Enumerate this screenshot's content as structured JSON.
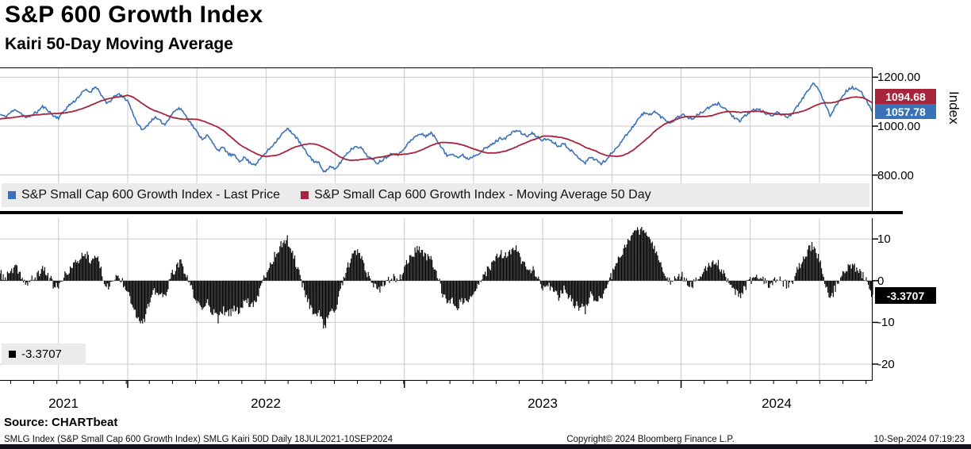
{
  "header": {
    "title": "S&P 600 Growth Index",
    "subtitle": "Kairi 50-Day Moving Average"
  },
  "top_axis": {
    "label": "Index",
    "tick_labels": [
      "1200.00",
      "1000.00",
      "800.00"
    ],
    "ma_callout": "1094.68",
    "price_callout": "1057.78"
  },
  "bottom_axis": {
    "tick_labels": [
      "10",
      "0",
      "-10",
      "-20"
    ],
    "value_callout": "-3.3707"
  },
  "kairi_legend": {
    "value": "-3.3707"
  },
  "x_axis": {
    "years": [
      "2021",
      "2022",
      "2023",
      "2024"
    ]
  },
  "footer": {
    "source": "Source:  CHARTbeat",
    "left": "SMLG Index (S&P Small Cap 600 Growth Index) SMLG Kairi 50D  Daily 18JUL2021-10SEP2024",
    "center": "Copyright© 2024 Bloomberg Finance L.P.",
    "right": "10-Sep-2024 07:19:23"
  },
  "colors": {
    "price_line": "#3A72B9",
    "ma_line": "#A8243A",
    "bars": "#000000",
    "grid": "#c9c9c9",
    "legend_band": "#ebebeb",
    "footer_bar": "#12121e"
  },
  "chart_data": {
    "type": "line+bar",
    "x": {
      "start": "18JUL2021",
      "end": "10SEP2024",
      "sampling": "weekly",
      "count": 165,
      "total_weeks": 164,
      "year_gridline_weeks": [
        24,
        76,
        128
      ],
      "quarter_gridline_weeks": [
        11,
        24,
        37,
        50,
        63,
        76,
        89,
        102,
        115,
        128,
        141,
        154
      ],
      "year_label_weeks": [
        12,
        50,
        102,
        146
      ]
    },
    "panels": [
      {
        "type": "line",
        "ylabel": "Index",
        "ylim": [
          760,
          1240
        ],
        "yticks": [
          1200,
          1000,
          800
        ],
        "series": [
          {
            "name": "S&P Small Cap 600 Growth Index - Last Price",
            "color": "#3A72B9",
            "last": 1057.78,
            "values": [
              1048,
              1038,
              1056,
              1068,
              1052,
              1032,
              1046,
              1058,
              1080,
              1066,
              1042,
              1034,
              1062,
              1086,
              1102,
              1126,
              1148,
              1140,
              1164,
              1130,
              1092,
              1108,
              1132,
              1120,
              1104,
              1052,
              1002,
              984,
              1012,
              1036,
              1022,
              1006,
              1042,
              1066,
              1072,
              1040,
              1008,
              976,
              948,
              962,
              930,
              902,
              912,
              884,
              880,
              858,
              872,
              850,
              844,
              868,
              892,
              916,
              942,
              968,
              988,
              972,
              944,
              910,
              880,
              856,
              848,
              812,
              834,
              822,
              852,
              884,
              905,
              920,
              908,
              880,
              862,
              850,
              864,
              880,
              892,
              884,
              912,
              936,
              956,
              968,
              960,
              972,
              948,
              912,
              878,
              890,
              872,
              880,
              866,
              878,
              890,
              906,
              918,
              934,
              950,
              952,
              968,
              984,
              972,
              958,
              970,
              956,
              942,
              948,
              934,
              918,
              930,
              908,
              884,
              868,
              850,
              874,
              862,
              846,
              864,
              890,
              916,
              944,
              972,
              1000,
              1030,
              1054,
              1046,
              1060,
              1042,
              1026,
              1014,
              1030,
              1048,
              1040,
              1028,
              1044,
              1058,
              1072,
              1084,
              1092,
              1076,
              1058,
              1034,
              1018,
              1042,
              1058,
              1070,
              1064,
              1050,
              1044,
              1056,
              1046,
              1038,
              1054,
              1084,
              1118,
              1152,
              1176,
              1142,
              1096,
              1044,
              1080,
              1114,
              1142,
              1158,
              1150,
              1134,
              1100,
              1057.78
            ]
          },
          {
            "name": "S&P Small Cap 600 Growth Index - Moving Average 50 Day",
            "color": "#A8243A",
            "last": 1094.68,
            "values": [
              1030,
              1032,
              1034,
              1037,
              1040,
              1042,
              1044,
              1046,
              1048,
              1050,
              1051,
              1052,
              1054,
              1057,
              1062,
              1068,
              1076,
              1085,
              1094,
              1103,
              1110,
              1115,
              1119,
              1122,
              1126,
              1119,
              1104,
              1089,
              1074,
              1064,
              1057,
              1047,
              1038,
              1033,
              1029,
              1028,
              1029,
              1028,
              1022,
              1014,
              1005,
              995,
              982,
              963,
              944,
              926,
              912,
              900,
              889,
              880,
              876,
              878,
              881,
              889,
              900,
              911,
              918,
              924,
              928,
              927,
              922,
              912,
              901,
              887,
              873,
              864,
              860,
              861,
              864,
              866,
              868,
              872,
              875,
              880,
              884,
              884,
              885,
              888,
              893,
              900,
              910,
              920,
              929,
              933,
              933,
              931,
              928,
              923,
              915,
              907,
              900,
              893,
              890,
              890,
              893,
              898,
              906,
              915,
              925,
              934,
              943,
              950,
              959,
              960,
              958,
              955,
              951,
              944,
              935,
              926,
              914,
              906,
              898,
              887,
              880,
              878,
              876,
              880,
              889,
              902,
              920,
              938,
              956,
              978,
              995,
              1009,
              1019,
              1027,
              1035,
              1039,
              1039,
              1038,
              1039,
              1040,
              1044,
              1051,
              1057,
              1060,
              1059,
              1056,
              1058,
              1059,
              1060,
              1060,
              1056,
              1051,
              1049,
              1048,
              1049,
              1052,
              1056,
              1062,
              1071,
              1082,
              1091,
              1096,
              1095,
              1098,
              1106,
              1112,
              1117,
              1119,
              1117,
              1108,
              1094.68
            ]
          }
        ]
      },
      {
        "type": "bar",
        "name": "Kairi 50-Day (%)",
        "definition": "(last_price - ma50) / ma50 * 100",
        "color": "#000000",
        "ylim": [
          -24,
          15
        ],
        "yticks": [
          10,
          0,
          -10,
          -20
        ],
        "last": -3.3707,
        "values": [
          1.7,
          0.6,
          2.1,
          3.0,
          1.2,
          -1.0,
          0.2,
          1.1,
          3.1,
          1.5,
          -0.9,
          -1.7,
          0.8,
          2.7,
          3.8,
          5.4,
          6.7,
          5.1,
          6.4,
          2.4,
          -1.6,
          -0.6,
          1.2,
          -0.2,
          -2.0,
          -6.0,
          -9.2,
          -9.6,
          -5.8,
          -2.6,
          -3.3,
          -3.9,
          0.4,
          3.2,
          4.2,
          1.2,
          -2.0,
          -5.1,
          -7.2,
          -5.1,
          -7.5,
          -9.3,
          -7.1,
          -8.2,
          -6.8,
          -7.3,
          -4.4,
          -5.6,
          -5.1,
          -1.4,
          1.8,
          4.3,
          6.9,
          8.9,
          9.8,
          6.7,
          2.8,
          -1.5,
          -5.2,
          -7.7,
          -8.0,
          -11.0,
          -7.4,
          -7.3,
          -2.4,
          2.3,
          5.2,
          6.9,
          5.1,
          1.6,
          -0.7,
          -2.5,
          -1.3,
          0.0,
          0.9,
          0.0,
          3.1,
          5.4,
          7.1,
          7.6,
          5.5,
          5.7,
          2.0,
          -2.3,
          -5.9,
          -4.4,
          -6.0,
          -4.7,
          -5.4,
          -3.2,
          -1.1,
          1.5,
          3.1,
          4.9,
          6.4,
          6.0,
          6.8,
          7.5,
          5.1,
          2.6,
          2.9,
          0.6,
          -1.8,
          -1.3,
          -2.5,
          -3.9,
          -2.2,
          -3.8,
          -5.5,
          -6.3,
          -7.0,
          -3.5,
          -4.0,
          -4.6,
          -1.8,
          1.4,
          4.6,
          7.3,
          9.3,
          10.9,
          12.0,
          12.4,
          9.4,
          8.4,
          4.7,
          1.7,
          -0.5,
          0.3,
          1.3,
          0.1,
          -1.1,
          0.6,
          1.8,
          3.1,
          3.8,
          3.9,
          1.8,
          -0.2,
          -2.4,
          -3.6,
          -1.5,
          -0.1,
          0.9,
          0.4,
          -0.6,
          -0.7,
          0.7,
          -0.2,
          -1.0,
          0.2,
          2.7,
          5.3,
          7.6,
          8.7,
          4.7,
          0.0,
          -4.7,
          -1.6,
          0.7,
          2.7,
          3.7,
          2.8,
          1.5,
          -0.7,
          -3.3707
        ]
      }
    ]
  }
}
